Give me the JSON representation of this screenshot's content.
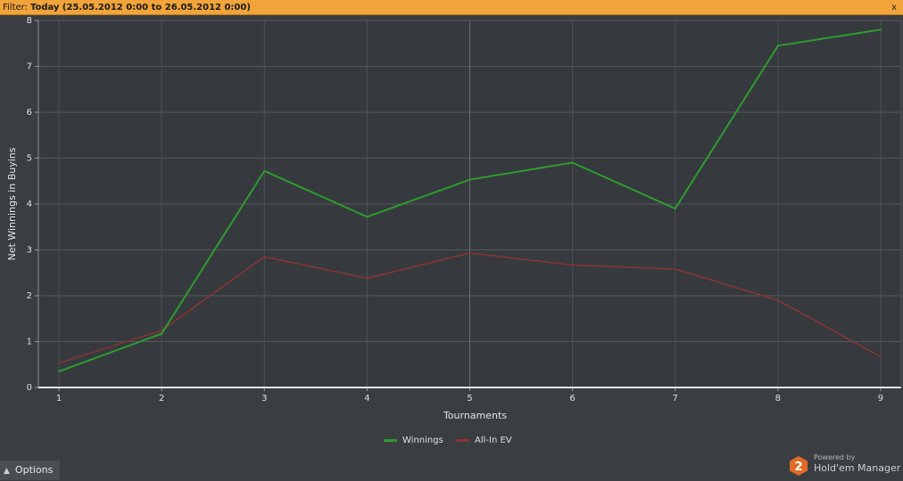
{
  "filter": {
    "label": "Filter:",
    "value": "Today (25.05.2012 0:00 to 26.05.2012 0:00)",
    "close_icon": "x"
  },
  "chart_data": {
    "type": "line",
    "title": "",
    "xlabel": "Tournaments",
    "ylabel": "Net Winnings in Buyins",
    "x": [
      1,
      2,
      3,
      4,
      5,
      6,
      7,
      8,
      9
    ],
    "xticks": [
      "1",
      "2",
      "3",
      "4",
      "5",
      "6",
      "7",
      "8",
      "9"
    ],
    "yticks": [
      "0",
      "1",
      "2",
      "3",
      "4",
      "5",
      "6",
      "7",
      "8"
    ],
    "xlim": [
      0.8,
      9.2
    ],
    "ylim": [
      0,
      8
    ],
    "grid": true,
    "legend_position": "bottom-center",
    "series": [
      {
        "name": "Winnings",
        "color": "#2e9b2e",
        "values": [
          0.35,
          1.17,
          4.72,
          3.72,
          4.53,
          4.9,
          3.9,
          7.45,
          7.8
        ]
      },
      {
        "name": "All-In EV",
        "color": "#8b3333",
        "values": [
          0.53,
          1.24,
          2.85,
          2.38,
          2.93,
          2.67,
          2.58,
          1.9,
          0.67
        ]
      }
    ]
  },
  "options": {
    "label": "Options",
    "caret_icon": "chevron-up-icon"
  },
  "branding": {
    "powered_by": "Powered by",
    "product": "Hold'em Manager",
    "logo_text": "2"
  }
}
